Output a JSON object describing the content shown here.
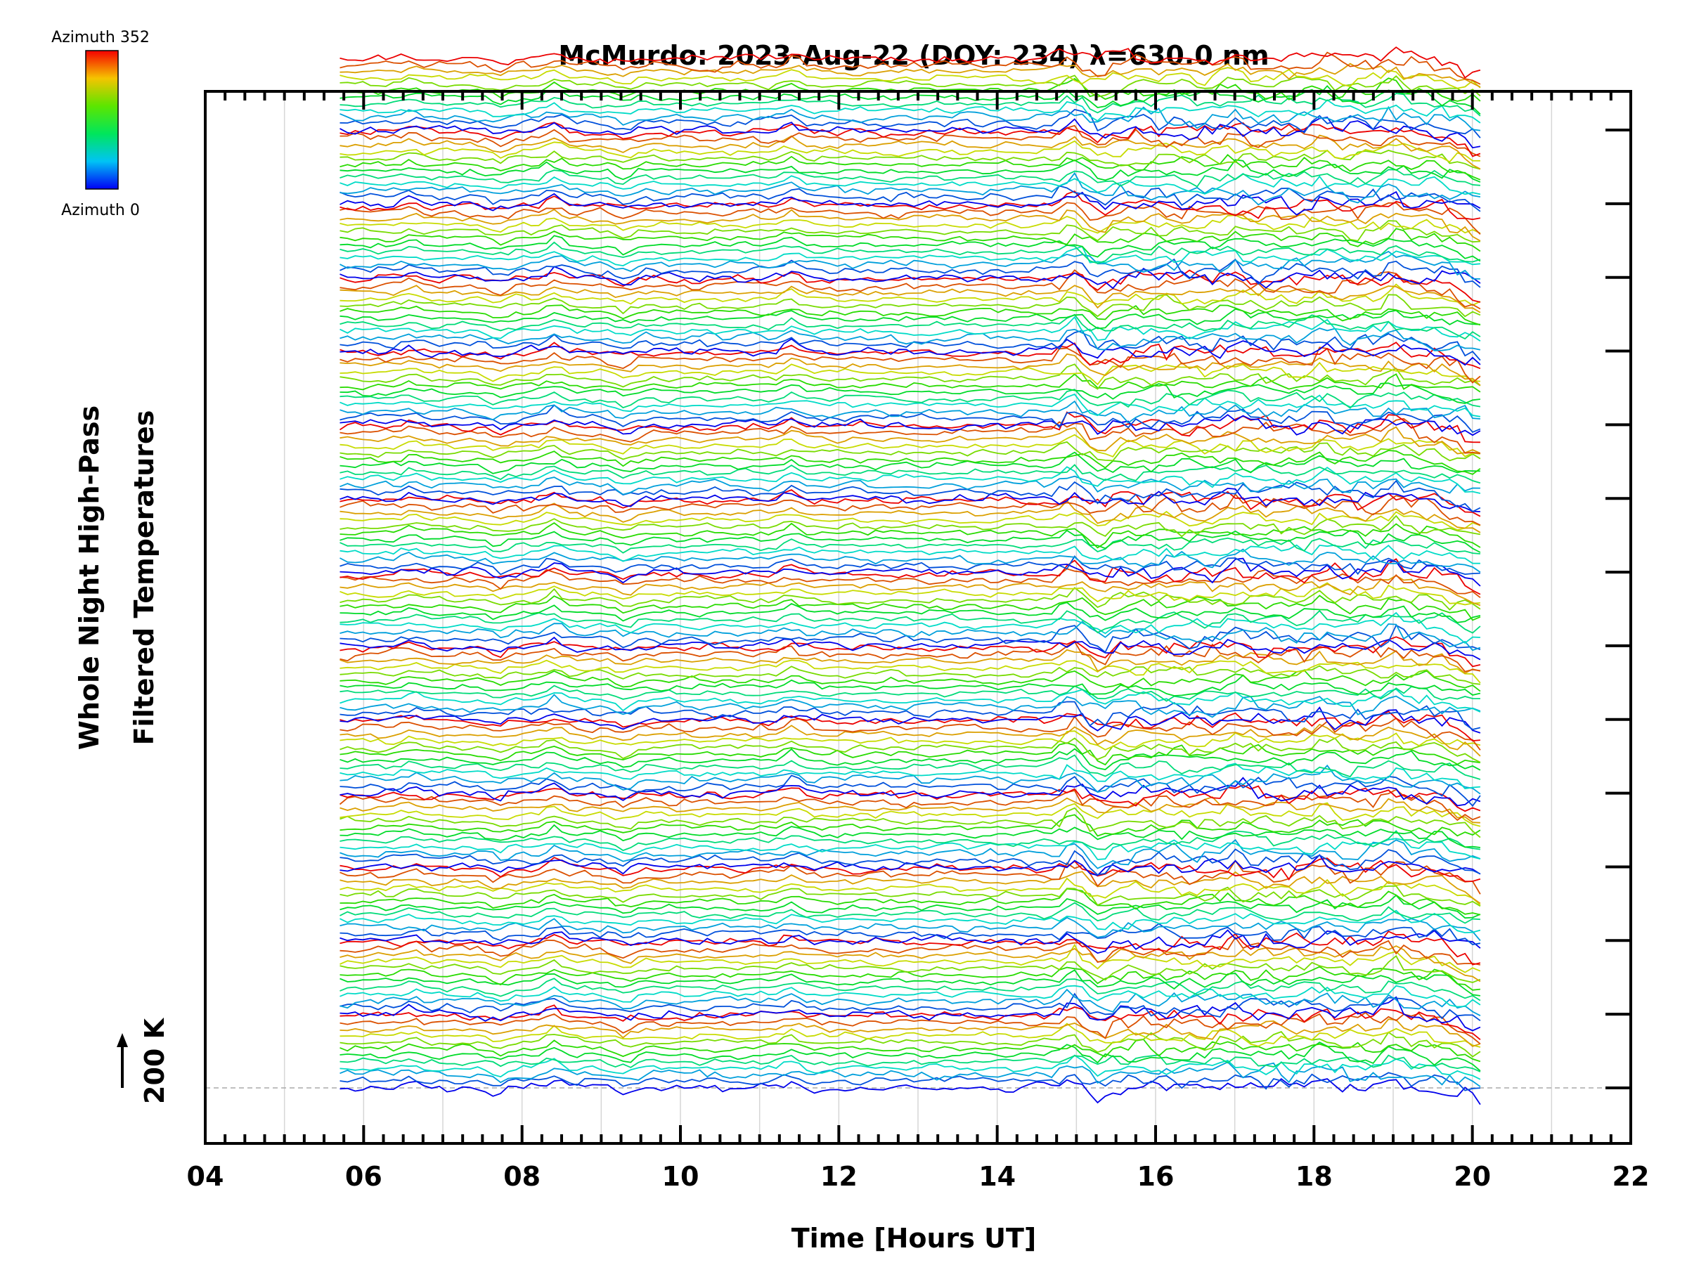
{
  "chart_data": {
    "type": "line",
    "title": "McMurdo: 2023-Aug-22 (DOY: 234) λ=630.0 nm",
    "xlabel": "Time [Hours UT]",
    "ylabel_lines": [
      "Whole Night High-Pass",
      "Filtered Temperatures"
    ],
    "scale_label": "200 K",
    "xlim": [
      4,
      22
    ],
    "x_tick_values": [
      4,
      6,
      8,
      10,
      12,
      14,
      16,
      18,
      20,
      22
    ],
    "x_tick_labels": [
      "04",
      "06",
      "08",
      "10",
      "12",
      "14",
      "16",
      "18",
      "20",
      "22"
    ],
    "colorbar": {
      "top_label": "Azimuth  352",
      "bottom_label": "Azimuth  0",
      "azimuth_range": [
        0,
        352
      ]
    },
    "data_range": {
      "start_hour": 5.7,
      "end_hour": 20.1,
      "samples": 150
    },
    "series_layout": {
      "groups": 14,
      "azimuths_per_group": 12,
      "group_step_k": 200
    },
    "grid": true,
    "colors": {
      "grid": "#d6d6d6",
      "axis": "#000000",
      "baseline": "#aaaaaa"
    }
  }
}
